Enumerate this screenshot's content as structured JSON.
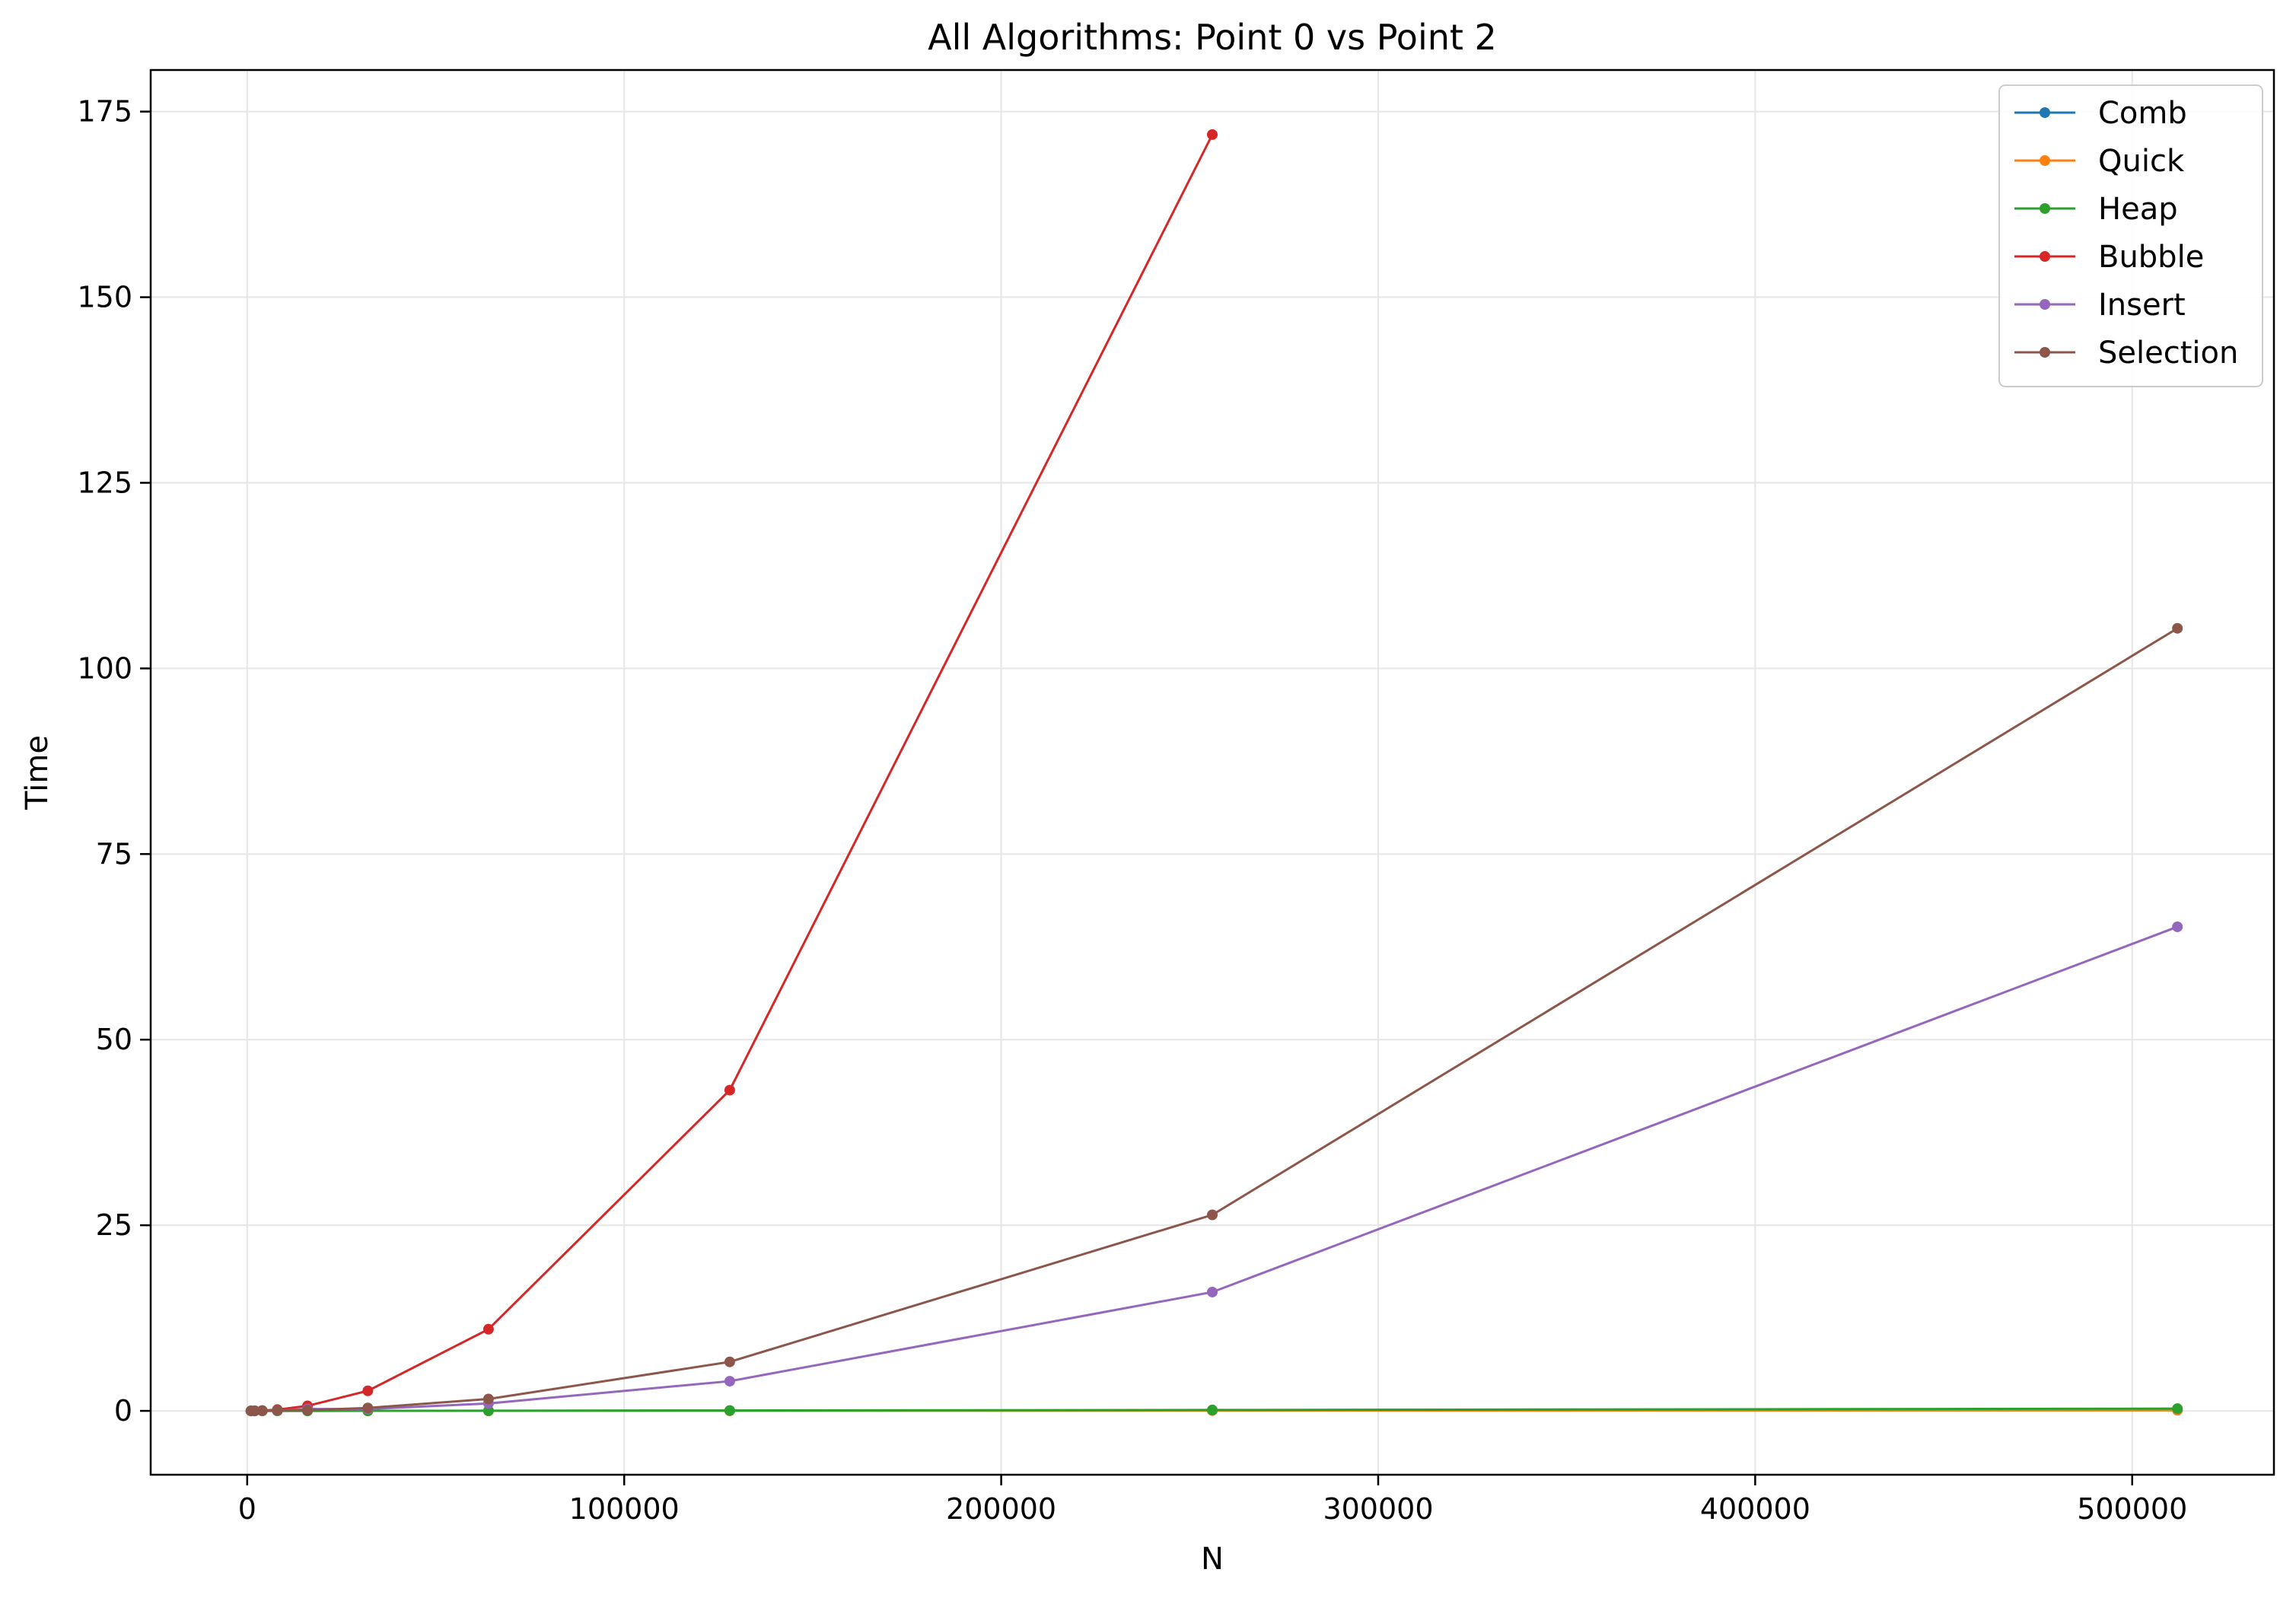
{
  "chart_data": {
    "type": "line",
    "title": "All Algorithms: Point 0 vs Point 2",
    "xlabel": "N",
    "ylabel": "Time",
    "xlim": [
      -25600,
      537600
    ],
    "ylim": [
      -8.6,
      180.6
    ],
    "xticks": [
      0,
      100000,
      200000,
      300000,
      400000,
      500000
    ],
    "yticks": [
      0,
      25,
      50,
      75,
      100,
      125,
      150,
      175
    ],
    "grid": true,
    "legend_position": "top-right",
    "series": [
      {
        "name": "Comb",
        "color": "#1f77b4",
        "x": [
          1000,
          2000,
          4000,
          8000,
          16000,
          32000,
          64000,
          128000,
          256000,
          512000
        ],
        "y": [
          0.0,
          0.0,
          0.0,
          0.001,
          0.002,
          0.005,
          0.01,
          0.02,
          0.05,
          0.1
        ]
      },
      {
        "name": "Quick",
        "color": "#ff7f0e",
        "x": [
          1000,
          2000,
          4000,
          8000,
          16000,
          32000,
          64000,
          128000,
          256000,
          512000
        ],
        "y": [
          0.0,
          0.0,
          0.0,
          0.001,
          0.002,
          0.004,
          0.008,
          0.02,
          0.04,
          0.08
        ]
      },
      {
        "name": "Heap",
        "color": "#2ca02c",
        "x": [
          1000,
          2000,
          4000,
          8000,
          16000,
          32000,
          64000,
          128000,
          256000,
          512000
        ],
        "y": [
          0.0,
          0.0,
          0.0,
          0.002,
          0.004,
          0.01,
          0.02,
          0.05,
          0.12,
          0.3
        ]
      },
      {
        "name": "Bubble",
        "color": "#d62728",
        "x": [
          1000,
          2000,
          4000,
          8000,
          16000,
          32000,
          64000,
          128000,
          256000
        ],
        "y": [
          0.0,
          0.01,
          0.04,
          0.17,
          0.67,
          2.7,
          11.0,
          43.2,
          171.9
        ]
      },
      {
        "name": "Insert",
        "color": "#9467bd",
        "x": [
          1000,
          2000,
          4000,
          8000,
          16000,
          32000,
          64000,
          128000,
          256000,
          512000
        ],
        "y": [
          0.0,
          0.0,
          0.02,
          0.06,
          0.25,
          0.25,
          1.0,
          4.0,
          16.0,
          65.2
        ]
      },
      {
        "name": "Selection",
        "color": "#8c564b",
        "x": [
          1000,
          2000,
          4000,
          8000,
          16000,
          32000,
          64000,
          128000,
          256000,
          512000
        ],
        "y": [
          0.0,
          0.0,
          0.03,
          0.1,
          0.1,
          0.4,
          1.6,
          6.6,
          26.4,
          105.4
        ]
      }
    ]
  }
}
